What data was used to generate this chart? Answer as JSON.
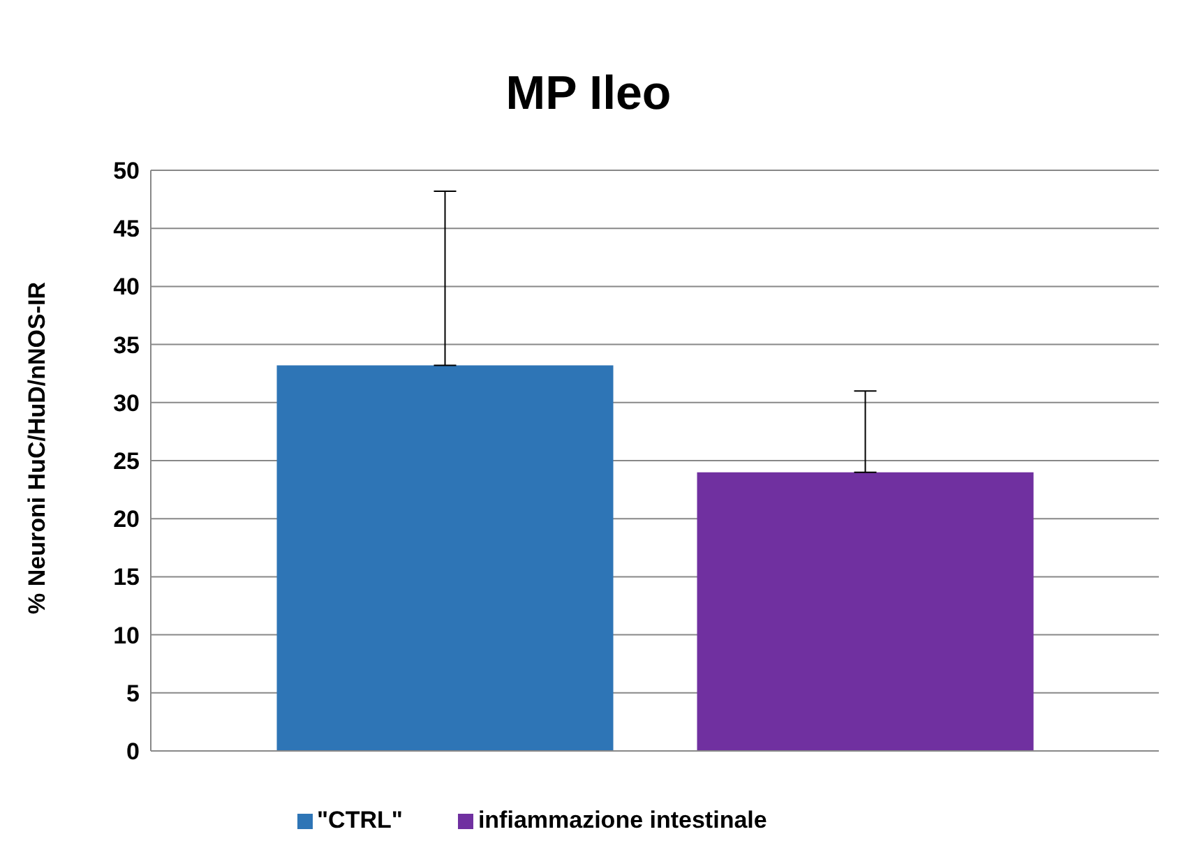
{
  "chart_data": {
    "type": "bar",
    "title": "MP Ileo",
    "ylabel": "% Neuroni HuC/HuD/nNOS-IR",
    "categories": [
      null
    ],
    "series": [
      {
        "name": "\"CTRL\"",
        "color": "#2e75b6",
        "values": [
          33.2
        ],
        "errors": [
          [
            33.2,
            48.2
          ]
        ]
      },
      {
        "name": "infiammazione intestinale",
        "color": "#7030a0",
        "values": [
          24
        ],
        "errors": [
          [
            24,
            31
          ]
        ]
      }
    ],
    "ylim": [
      0,
      50
    ],
    "yticks": [
      0,
      5,
      10,
      15,
      20,
      25,
      30,
      35,
      40,
      45,
      50
    ],
    "grid": "y",
    "legend": "bottom"
  }
}
